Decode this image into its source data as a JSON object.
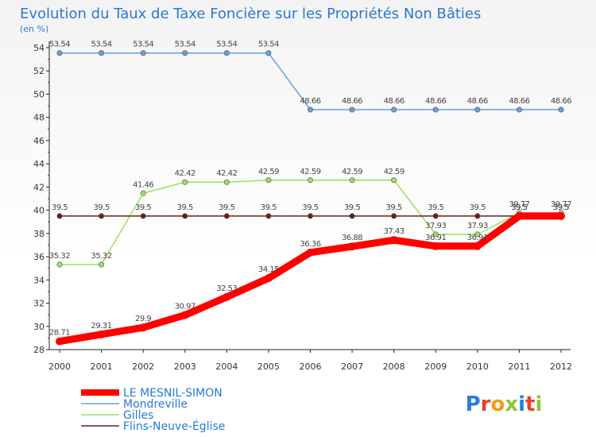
{
  "chart_data": {
    "type": "line",
    "title": "Evolution du Taux de Taxe Foncière sur les Propriétés Non Bâties",
    "unit_label": "(en %)",
    "xlabel": "",
    "ylabel": "",
    "x": [
      "2000",
      "2001",
      "2002",
      "2003",
      "2004",
      "2005",
      "2006",
      "2007",
      "2008",
      "2009",
      "2010",
      "2011",
      "2012"
    ],
    "ylim": [
      28,
      54
    ],
    "yticks": [
      28,
      30,
      32,
      34,
      36,
      38,
      40,
      42,
      44,
      46,
      48,
      50,
      52,
      54
    ],
    "grid": false,
    "legend_position": "bottom-left",
    "series": [
      {
        "name": "LE MESNIL-SIMON",
        "color": "#ff0000",
        "values": [
          28.71,
          29.31,
          29.9,
          30.97,
          32.53,
          34.15,
          36.36,
          36.88,
          37.43,
          36.91,
          36.91,
          39.5,
          39.5
        ],
        "labels": [
          "28.71",
          "29.31",
          "29.9",
          "30.97",
          "32.53",
          "34.15",
          "36.36",
          "36.88",
          "37.43",
          "36.91",
          "36.91",
          "39.5",
          "39.5"
        ]
      },
      {
        "name": "Mondreville",
        "color": "#6a9fd4",
        "values": [
          53.54,
          53.54,
          53.54,
          53.54,
          53.54,
          53.54,
          48.66,
          48.66,
          48.66,
          48.66,
          48.66,
          48.66,
          48.66
        ],
        "labels": [
          "53.54",
          "53.54",
          "53.54",
          "53.54",
          "53.54",
          "53.54",
          "48.66",
          "48.66",
          "48.66",
          "48.66",
          "48.66",
          "48.66",
          "48.66"
        ]
      },
      {
        "name": "Gilles",
        "color": "#9be05e",
        "values": [
          35.32,
          35.32,
          41.46,
          42.42,
          42.42,
          42.59,
          42.59,
          42.59,
          42.59,
          37.93,
          37.93,
          39.77,
          39.77
        ],
        "labels": [
          "35.32",
          "35.32",
          "41.46",
          "42.42",
          "42.42",
          "42.59",
          "42.59",
          "42.59",
          "42.59",
          "37.93",
          "37.93",
          "39.77",
          "39.77"
        ]
      },
      {
        "name": "Flins-Neuve-Église",
        "color": "#6b1e1e",
        "values": [
          39.5,
          39.5,
          39.5,
          39.5,
          39.5,
          39.5,
          39.5,
          39.5,
          39.5,
          39.5,
          39.5,
          39.5,
          39.5
        ],
        "labels": [
          "39.5",
          "39.5",
          "39.5",
          "39.5",
          "39.5",
          "39.5",
          "39.5",
          "39.5",
          "39.5",
          "39.5",
          "39.5",
          "39.5",
          "39.5"
        ]
      }
    ]
  },
  "branding": {
    "logo_text": "Proxiti"
  }
}
